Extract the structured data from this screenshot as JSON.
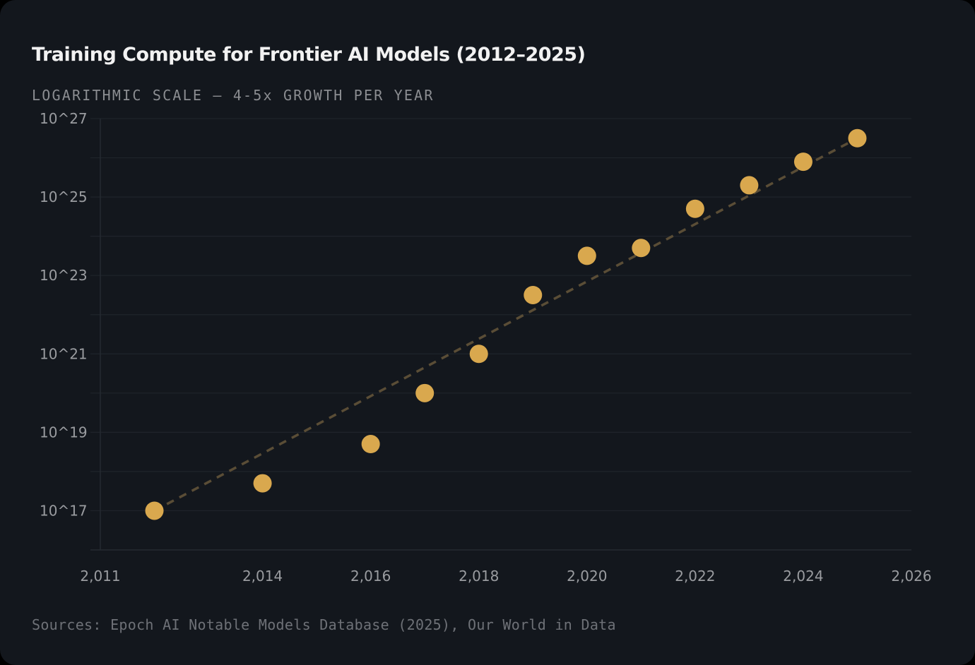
{
  "chart_data": {
    "type": "scatter",
    "title": "Training Compute for Frontier AI Models (2012–2025)",
    "subtitle": "LOGARITHMIC SCALE — 4-5x GROWTH PER YEAR",
    "source": "Sources: Epoch AI Notable Models Database (2025), Our World in Data",
    "xlabel": "",
    "ylabel": "",
    "x_scale": "linear",
    "y_scale": "log10",
    "xlim": [
      2011,
      2026
    ],
    "ylim_log10": [
      16,
      27
    ],
    "x_ticks": [
      2011,
      2014,
      2016,
      2018,
      2020,
      2022,
      2024,
      2026
    ],
    "x_tick_labels": [
      "2,011",
      "2,014",
      "2,016",
      "2,018",
      "2,020",
      "2,022",
      "2,024",
      "2,026"
    ],
    "y_ticks_log10": [
      17,
      19,
      21,
      23,
      25,
      27
    ],
    "y_tick_labels": [
      "10^17",
      "10^19",
      "10^21",
      "10^23",
      "10^25",
      "10^27"
    ],
    "grid": true,
    "point_color": "#d9a84e",
    "trend_color": "#5a4d36",
    "series": [
      {
        "points": [
          {
            "x": 2012,
            "log10_y": 17.0
          },
          {
            "x": 2014,
            "log10_y": 17.7
          },
          {
            "x": 2016,
            "log10_y": 18.7
          },
          {
            "x": 2017,
            "log10_y": 20.0
          },
          {
            "x": 2018,
            "log10_y": 21.0
          },
          {
            "x": 2019,
            "log10_y": 22.5
          },
          {
            "x": 2020,
            "log10_y": 23.5
          },
          {
            "x": 2021,
            "log10_y": 23.7
          },
          {
            "x": 2022,
            "log10_y": 24.7
          },
          {
            "x": 2023,
            "log10_y": 25.3
          },
          {
            "x": 2024,
            "log10_y": 25.9
          },
          {
            "x": 2025,
            "log10_y": 26.5
          }
        ]
      }
    ],
    "trend_line": {
      "style": "dashed",
      "from": {
        "x": 2012,
        "log10_y": 17.0
      },
      "to": {
        "x": 2025,
        "log10_y": 26.5
      }
    }
  }
}
